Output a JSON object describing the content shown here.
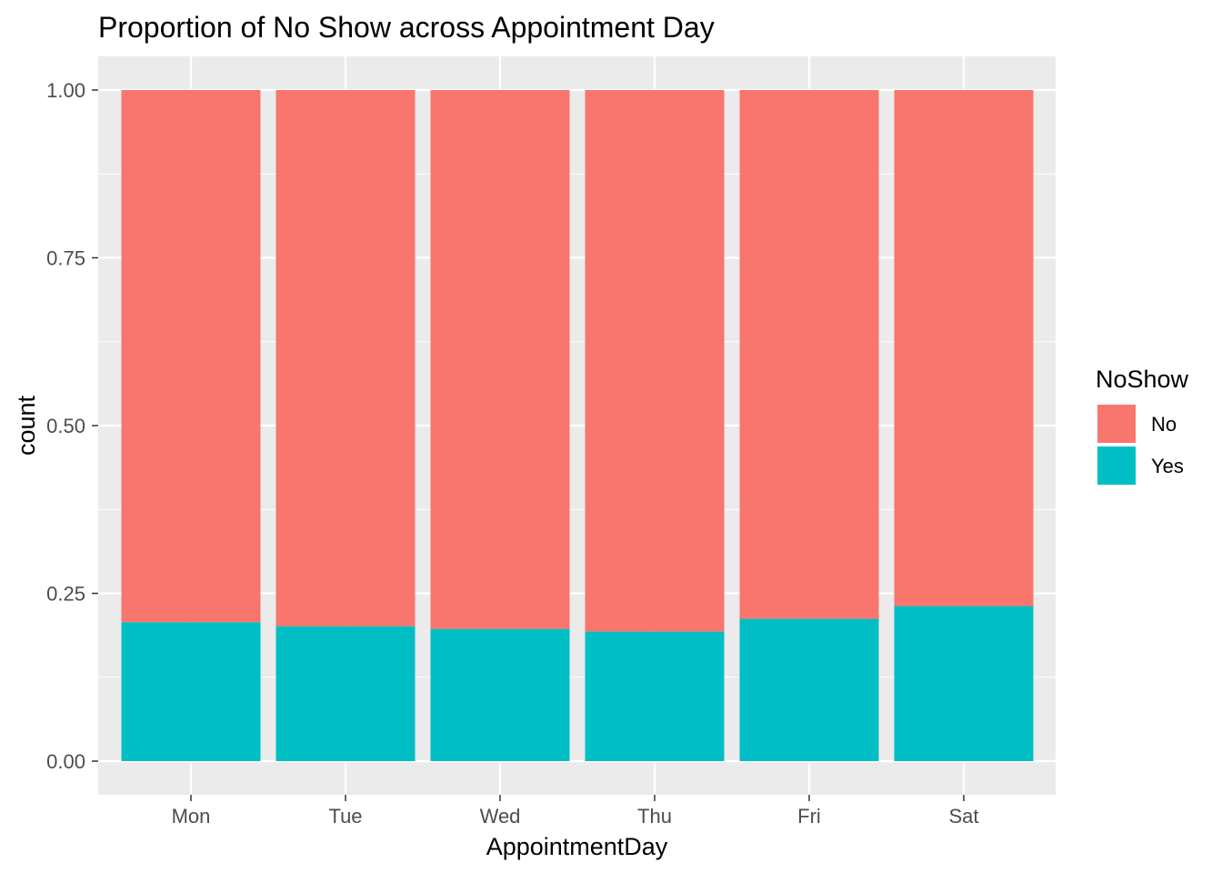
{
  "chart_data": {
    "type": "bar",
    "stacked": true,
    "title": "Proportion of No Show across Appointment Day",
    "xlabel": "AppointmentDay",
    "ylabel": "count",
    "categories": [
      "Mon",
      "Tue",
      "Wed",
      "Thu",
      "Fri",
      "Sat"
    ],
    "series": [
      {
        "name": "No",
        "color": "#F8766D",
        "values": [
          0.793,
          0.799,
          0.803,
          0.807,
          0.788,
          0.769
        ]
      },
      {
        "name": "Yes",
        "color": "#00BFC4",
        "values": [
          0.207,
          0.201,
          0.197,
          0.193,
          0.212,
          0.231
        ]
      }
    ],
    "ylim": [
      0,
      1
    ],
    "yticks": [
      0,
      0.25,
      0.5,
      0.75,
      1
    ],
    "ytick_labels": [
      "0.00",
      "0.25",
      "0.50",
      "0.75",
      "1.00"
    ],
    "grid": true,
    "legend": {
      "title": "NoShow",
      "position": "right",
      "entries": [
        "No",
        "Yes"
      ]
    },
    "colors": {
      "panel_background": "#EBEBEB",
      "grid": "#FFFFFF"
    }
  }
}
